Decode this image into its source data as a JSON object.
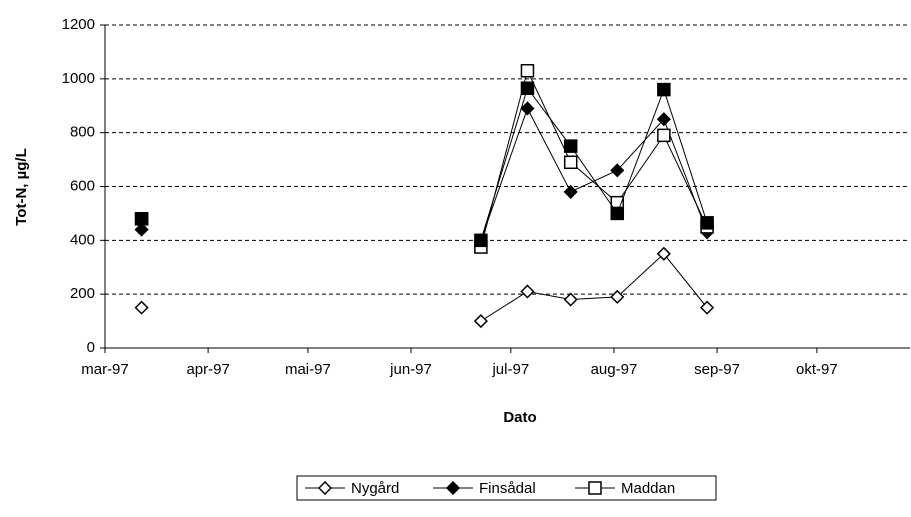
{
  "chart_data": {
    "type": "line",
    "x_label": "Dato",
    "y_label": "Tot-N, µg/L",
    "x": [
      71,
      null,
      173,
      187,
      200,
      214,
      228,
      241
    ],
    "series": [
      {
        "name": "Nygård",
        "color": "#000000",
        "marker": "diamond-open",
        "values": [
          150,
          null,
          100,
          210,
          180,
          190,
          350,
          150
        ]
      },
      {
        "name": "Finsådal",
        "color": "#000000",
        "marker": "diamond-filled",
        "values": [
          440,
          null,
          400,
          890,
          580,
          660,
          850,
          430
        ]
      },
      {
        "name": "Maddan",
        "color": "#000000",
        "marker": "square-open",
        "values": [
          480,
          null,
          375,
          1030,
          690,
          540,
          790,
          450
        ]
      },
      {
        "color": "#000000",
        "marker": "square-filled",
        "values": [
          480,
          null,
          400,
          965,
          750,
          500,
          960,
          465
        ]
      }
    ],
    "xlim": [
      60,
      302
    ],
    "xticks": [
      {
        "value": 60,
        "label": "mar-97"
      },
      {
        "value": 91,
        "label": "apr-97"
      },
      {
        "value": 121,
        "label": "mai-97"
      },
      {
        "value": 152,
        "label": "jun-97"
      },
      {
        "value": 182,
        "label": "jul-97"
      },
      {
        "value": 213,
        "label": "aug-97"
      },
      {
        "value": 244,
        "label": "sep-97"
      },
      {
        "value": 274,
        "label": "okt-97"
      }
    ],
    "ylim": [
      0,
      1200
    ],
    "yticks": [
      0,
      200,
      400,
      600,
      800,
      1000,
      1200
    ],
    "grid": true,
    "legend": "bottom"
  }
}
